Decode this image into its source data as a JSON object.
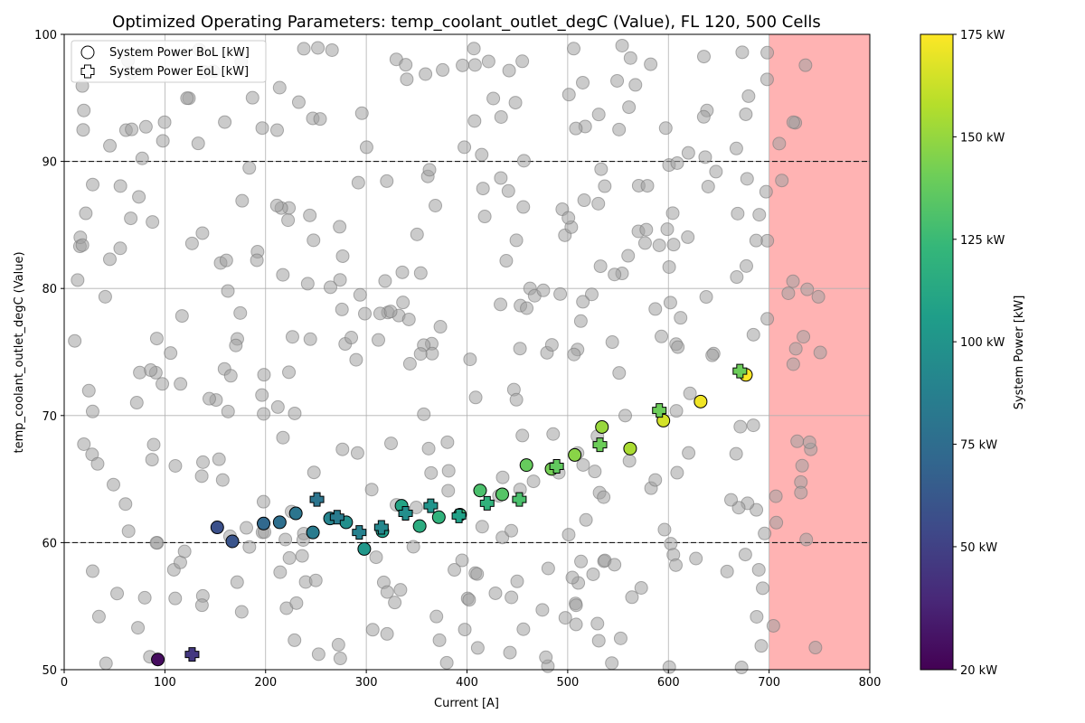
{
  "chart_data": {
    "type": "scatter",
    "title": "Optimized Operating Parameters: temp_coolant_outlet_degC (Value), FL 120, 500 Cells",
    "xlabel": "Current [A]",
    "ylabel": "temp_coolant_outlet_degC (Value)",
    "xlim": [
      0,
      800
    ],
    "ylim": [
      50,
      100
    ],
    "x_ticks": [
      0,
      100,
      200,
      300,
      400,
      500,
      600,
      700,
      800
    ],
    "y_ticks": [
      50,
      60,
      70,
      80,
      90,
      100
    ],
    "grid": true,
    "legend_position": "top-left",
    "reference_lines": [
      60,
      90
    ],
    "highlight_band": {
      "x_start": 700,
      "x_end": 800,
      "color": "#ffb3b3"
    },
    "colorbar": {
      "label": "System Power [kW]",
      "min": 20,
      "max": 175,
      "ticks": [
        20,
        50,
        75,
        100,
        125,
        150,
        175
      ],
      "tick_labels": [
        "20 kW",
        "50 kW",
        "75 kW",
        "100 kW",
        "125 kW",
        "150 kW",
        "175 kW"
      ],
      "colormap": [
        "#440154",
        "#482878",
        "#3e4a89",
        "#31688e",
        "#26828e",
        "#1f9e89",
        "#35b779",
        "#6ece58",
        "#b5de2b",
        "#fde725"
      ]
    },
    "background_point_color": "#a0a0a0",
    "series": [
      {
        "name": "System Power BoL [kW]",
        "marker": "circle",
        "points": [
          {
            "x": 93,
            "y": 50.8,
            "power": 25
          },
          {
            "x": 152,
            "y": 61.2,
            "power": 58
          },
          {
            "x": 167,
            "y": 60.1,
            "power": 60
          },
          {
            "x": 198,
            "y": 61.5,
            "power": 72
          },
          {
            "x": 214,
            "y": 61.6,
            "power": 76
          },
          {
            "x": 230,
            "y": 62.3,
            "power": 80
          },
          {
            "x": 247,
            "y": 60.8,
            "power": 84
          },
          {
            "x": 264,
            "y": 61.9,
            "power": 90
          },
          {
            "x": 280,
            "y": 61.6,
            "power": 97
          },
          {
            "x": 298,
            "y": 59.5,
            "power": 102
          },
          {
            "x": 316,
            "y": 60.9,
            "power": 106
          },
          {
            "x": 335,
            "y": 62.9,
            "power": 110
          },
          {
            "x": 353,
            "y": 61.3,
            "power": 116
          },
          {
            "x": 372,
            "y": 62.0,
            "power": 120
          },
          {
            "x": 393,
            "y": 62.2,
            "power": 125
          },
          {
            "x": 413,
            "y": 64.1,
            "power": 130
          },
          {
            "x": 435,
            "y": 63.8,
            "power": 133
          },
          {
            "x": 459,
            "y": 66.1,
            "power": 138
          },
          {
            "x": 484,
            "y": 65.8,
            "power": 142
          },
          {
            "x": 507,
            "y": 66.9,
            "power": 147
          },
          {
            "x": 534,
            "y": 69.1,
            "power": 151
          },
          {
            "x": 562,
            "y": 67.4,
            "power": 155
          },
          {
            "x": 595,
            "y": 69.6,
            "power": 165
          },
          {
            "x": 632,
            "y": 71.1,
            "power": 172
          },
          {
            "x": 677,
            "y": 73.2,
            "power": 175
          }
        ]
      },
      {
        "name": "System Power EoL [kW]",
        "marker": "plus",
        "points": [
          {
            "x": 127,
            "y": 51.2,
            "power": 45
          },
          {
            "x": 251,
            "y": 63.4,
            "power": 80
          },
          {
            "x": 271,
            "y": 62.0,
            "power": 84
          },
          {
            "x": 293,
            "y": 60.8,
            "power": 88
          },
          {
            "x": 315,
            "y": 61.2,
            "power": 92
          },
          {
            "x": 339,
            "y": 62.3,
            "power": 96
          },
          {
            "x": 364,
            "y": 62.9,
            "power": 100
          },
          {
            "x": 392,
            "y": 62.1,
            "power": 108
          },
          {
            "x": 420,
            "y": 63.1,
            "power": 120
          },
          {
            "x": 452,
            "y": 63.4,
            "power": 130
          },
          {
            "x": 489,
            "y": 66.0,
            "power": 137
          },
          {
            "x": 532,
            "y": 67.7,
            "power": 140
          },
          {
            "x": 591,
            "y": 70.4,
            "power": 140
          },
          {
            "x": 671,
            "y": 73.5,
            "power": 140
          }
        ]
      }
    ]
  }
}
